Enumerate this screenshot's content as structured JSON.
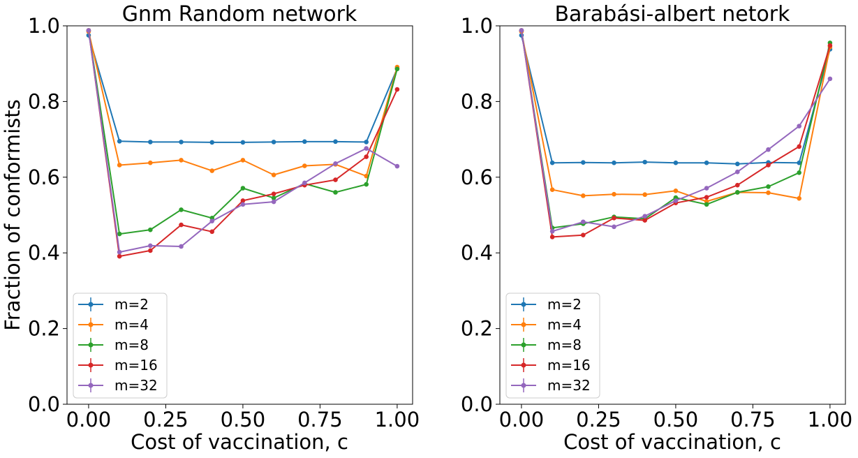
{
  "figure": {
    "ylabel": "Fraction of conformists",
    "xlabel": "Cost of vaccination, c"
  },
  "chart_data": [
    {
      "type": "line",
      "title": "Gnm Random network",
      "xlabel": "Cost of vaccination, c",
      "ylabel": "Fraction of conformists",
      "xlim": [
        -0.07,
        1.05
      ],
      "ylim": [
        0,
        1.0
      ],
      "xticks": [
        0.0,
        0.25,
        0.5,
        0.75,
        1.0
      ],
      "xtick_labels": [
        "0.00",
        "0.25",
        "0.50",
        "0.75",
        "1.00"
      ],
      "yticks": [
        0.0,
        0.2,
        0.4,
        0.6,
        0.8,
        1.0
      ],
      "ytick_labels": [
        "0.0",
        "0.2",
        "0.4",
        "0.6",
        "0.8",
        "1.0"
      ],
      "grid": false,
      "legend": "lower-left",
      "x": [
        0.0,
        0.1,
        0.2,
        0.3,
        0.4,
        0.5,
        0.6,
        0.7,
        0.8,
        0.9,
        1.0
      ],
      "series": [
        {
          "name": "m=2",
          "color": "#1f77b4",
          "values": [
            0.975,
            0.695,
            0.693,
            0.693,
            0.692,
            0.692,
            0.693,
            0.694,
            0.694,
            0.693,
            0.887
          ]
        },
        {
          "name": "m=4",
          "color": "#ff7f0e",
          "values": [
            0.985,
            0.632,
            0.638,
            0.645,
            0.617,
            0.645,
            0.606,
            0.63,
            0.634,
            0.603,
            0.891
          ]
        },
        {
          "name": "m=8",
          "color": "#2ca02c",
          "values": [
            0.988,
            0.45,
            0.461,
            0.514,
            0.492,
            0.571,
            0.545,
            0.583,
            0.56,
            0.581,
            0.886
          ]
        },
        {
          "name": "m=16",
          "color": "#d62728",
          "values": [
            0.988,
            0.391,
            0.406,
            0.474,
            0.456,
            0.538,
            0.556,
            0.579,
            0.593,
            0.654,
            0.832
          ]
        },
        {
          "name": "m=32",
          "color": "#9467bd",
          "values": [
            0.988,
            0.402,
            0.419,
            0.417,
            0.484,
            0.528,
            0.535,
            0.585,
            0.636,
            0.676,
            0.629
          ]
        }
      ]
    },
    {
      "type": "line",
      "title": "Barabási-albert netork",
      "xlabel": "Cost of vaccination, c",
      "ylabel": "",
      "xlim": [
        -0.07,
        1.05
      ],
      "ylim": [
        0,
        1.0
      ],
      "xticks": [
        0.0,
        0.25,
        0.5,
        0.75,
        1.0
      ],
      "xtick_labels": [
        "0.00",
        "0.25",
        "0.50",
        "0.75",
        "1.00"
      ],
      "yticks": [
        0.0,
        0.2,
        0.4,
        0.6,
        0.8,
        1.0
      ],
      "ytick_labels": [
        "0.0",
        "0.2",
        "0.4",
        "0.6",
        "0.8",
        "1.0"
      ],
      "grid": false,
      "legend": "lower-left",
      "x": [
        0.0,
        0.1,
        0.2,
        0.3,
        0.4,
        0.5,
        0.6,
        0.7,
        0.8,
        0.9,
        1.0
      ],
      "series": [
        {
          "name": "m=2",
          "color": "#1f77b4",
          "values": [
            0.975,
            0.638,
            0.639,
            0.638,
            0.64,
            0.638,
            0.638,
            0.635,
            0.639,
            0.638,
            0.938
          ]
        },
        {
          "name": "m=4",
          "color": "#ff7f0e",
          "values": [
            0.985,
            0.567,
            0.551,
            0.555,
            0.554,
            0.564,
            0.536,
            0.56,
            0.559,
            0.544,
            0.944
          ]
        },
        {
          "name": "m=8",
          "color": "#2ca02c",
          "values": [
            0.988,
            0.466,
            0.477,
            0.495,
            0.49,
            0.546,
            0.528,
            0.56,
            0.575,
            0.612,
            0.955
          ]
        },
        {
          "name": "m=16",
          "color": "#d62728",
          "values": [
            0.988,
            0.442,
            0.447,
            0.492,
            0.486,
            0.532,
            0.547,
            0.579,
            0.632,
            0.681,
            0.948
          ]
        },
        {
          "name": "m=32",
          "color": "#9467bd",
          "values": [
            0.988,
            0.457,
            0.482,
            0.469,
            0.497,
            0.538,
            0.571,
            0.614,
            0.673,
            0.735,
            0.86
          ]
        }
      ]
    }
  ]
}
